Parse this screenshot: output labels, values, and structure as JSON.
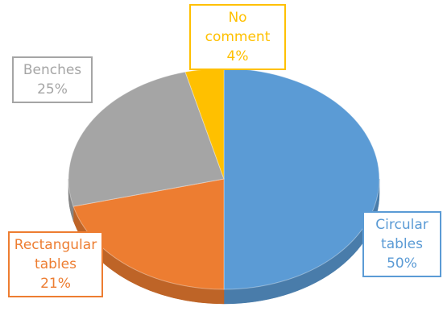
{
  "chart_data": {
    "type": "pie",
    "categories": [
      "Circular tables",
      "Rectangular tables",
      "Benches",
      "No comment"
    ],
    "values": [
      50,
      21,
      25,
      4
    ],
    "value_labels": [
      "50%",
      "21%",
      "25%",
      "4%"
    ],
    "colors": [
      "#5b9bd5",
      "#ed7d31",
      "#a5a5a5",
      "#ffc000"
    ]
  }
}
